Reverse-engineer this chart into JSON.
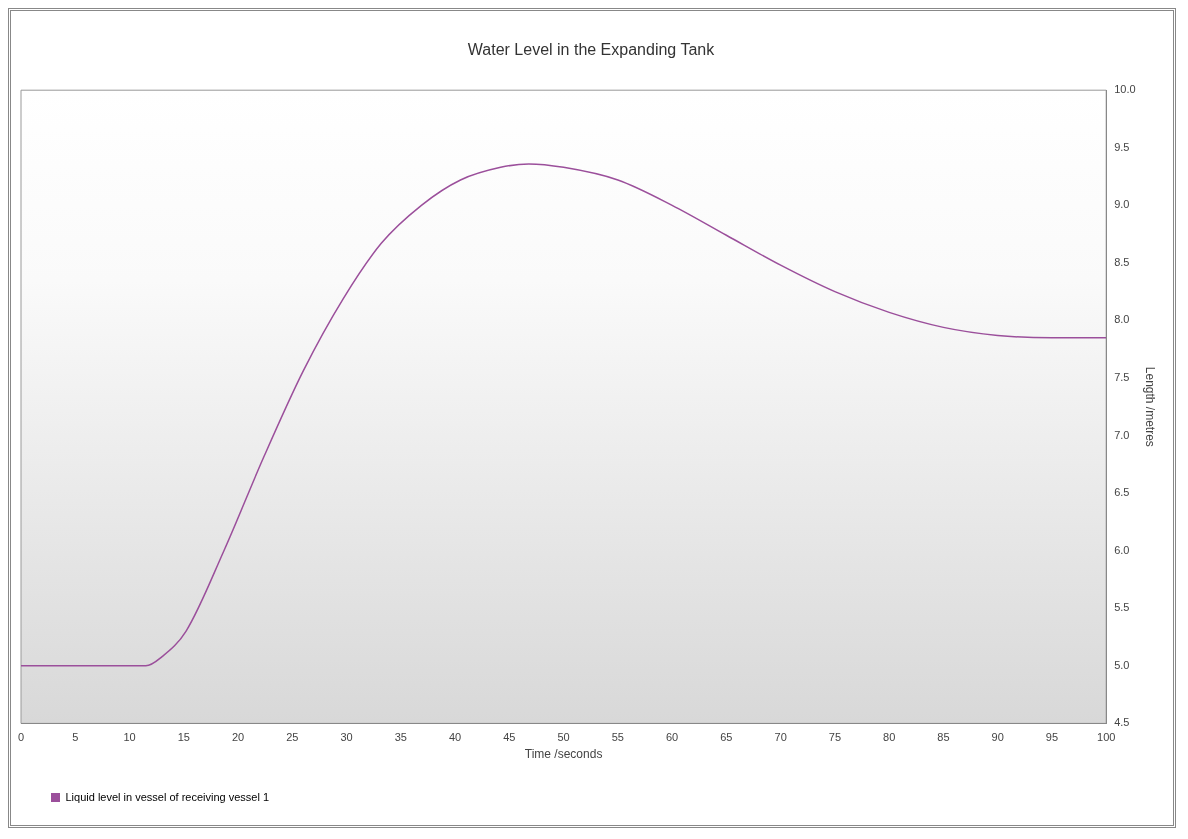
{
  "chart_data": {
    "type": "line",
    "title": "Water Level in the Expanding Tank",
    "xlabel": "Time /seconds",
    "ylabel": "Length /metres",
    "x": [
      0,
      5,
      10,
      11.5,
      13,
      15.2,
      18.7,
      22.4,
      26,
      29.7,
      33.2,
      36.9,
      40.5,
      44.2,
      46.8,
      50,
      55,
      60,
      65,
      70,
      75,
      80,
      85,
      90,
      95,
      100
    ],
    "series": [
      {
        "name": "Liquid level in vessel of receiving vessel 1",
        "color": "#9b4f9b",
        "values": [
          5.0,
          5.0,
          5.0,
          5.0,
          5.08,
          5.3,
          6.0,
          6.82,
          7.56,
          8.19,
          8.67,
          9.0,
          9.22,
          9.33,
          9.36,
          9.33,
          9.22,
          9.0,
          8.74,
          8.48,
          8.25,
          8.07,
          7.94,
          7.87,
          7.85,
          7.85
        ]
      }
    ],
    "xlim": [
      0,
      100
    ],
    "xticks": [
      0,
      5,
      10,
      15,
      20,
      25,
      30,
      35,
      40,
      45,
      50,
      55,
      60,
      65,
      70,
      75,
      80,
      85,
      90,
      95,
      100
    ],
    "ylim": [
      4.5,
      10.0
    ],
    "yticks": [
      {
        "value": 4.5,
        "label": "4.5"
      },
      {
        "value": 5,
        "label": "5.0"
      },
      {
        "value": 5.5,
        "label": "5.5"
      },
      {
        "value": 6,
        "label": "6.0"
      },
      {
        "value": 6.5,
        "label": "6.5"
      },
      {
        "value": 7,
        "label": "7.0"
      },
      {
        "value": 7.5,
        "label": "7.5"
      },
      {
        "value": 8,
        "label": "8.0"
      },
      {
        "value": 8.5,
        "label": "8.5"
      },
      {
        "value": 9,
        "label": "9.0"
      },
      {
        "value": 9.5,
        "label": "9.5"
      },
      {
        "value": 10,
        "label": "10.0"
      }
    ],
    "grid": false,
    "legend": "bottom left",
    "marker": "none",
    "line_style": "solid"
  }
}
